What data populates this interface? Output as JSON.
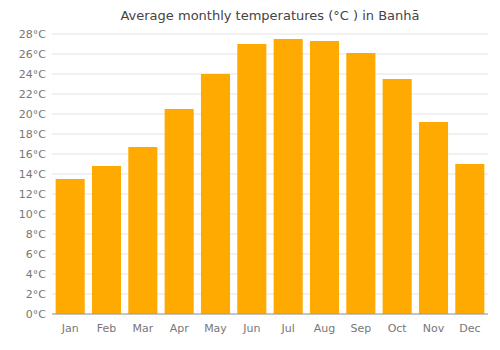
{
  "chart_data": {
    "type": "bar",
    "title": "Average monthly temperatures (°C ) in Banhā",
    "categories": [
      "Jan",
      "Feb",
      "Mar",
      "Apr",
      "May",
      "Jun",
      "Jul",
      "Aug",
      "Sep",
      "Oct",
      "Nov",
      "Dec"
    ],
    "values": [
      13.5,
      14.8,
      16.7,
      20.5,
      24.0,
      27.0,
      27.5,
      27.3,
      26.1,
      23.5,
      19.2,
      15.0
    ],
    "color": "#FFAA00",
    "ylim": [
      0,
      28
    ],
    "yticks": [
      {
        "value": 0,
        "label": "0°C"
      },
      {
        "value": 2,
        "label": "2°C"
      },
      {
        "value": 4,
        "label": "4°C"
      },
      {
        "value": 6,
        "label": "6°C"
      },
      {
        "value": 8,
        "label": "8°C"
      },
      {
        "value": 10,
        "label": "10°C"
      },
      {
        "value": 12,
        "label": "12°C"
      },
      {
        "value": 14,
        "label": "14°C"
      },
      {
        "value": 16,
        "label": "16°C"
      },
      {
        "value": 18,
        "label": "18°C"
      },
      {
        "value": 20,
        "label": "20°C"
      },
      {
        "value": 22,
        "label": "22°C"
      },
      {
        "value": 24,
        "label": "24°C"
      },
      {
        "value": 26,
        "label": "26°C"
      },
      {
        "value": 28,
        "label": "28°C"
      }
    ],
    "grid": true
  }
}
